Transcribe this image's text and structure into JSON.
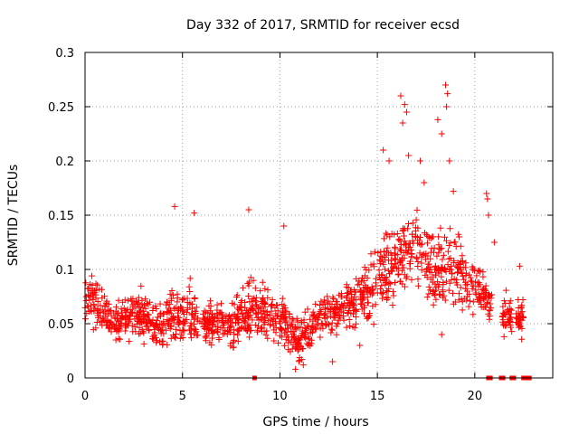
{
  "chart_data": {
    "type": "scatter",
    "title": "Day 332 of 2017, SRMTID for receiver ecsd",
    "xlabel": "GPS time / hours",
    "ylabel": "SRMTID / TECUs",
    "xlim": [
      0,
      24
    ],
    "ylim": [
      0,
      0.3
    ],
    "grid": true,
    "x_ticks": [
      0,
      5,
      10,
      15,
      20
    ],
    "x_tick_labels": [
      "0",
      "5",
      "10",
      "15",
      "20"
    ],
    "y_ticks": [
      0,
      0.05,
      0.1,
      0.15,
      0.2,
      0.25,
      0.3
    ],
    "y_tick_labels": [
      "0",
      "0.05",
      "0.1",
      "0.15",
      "0.2",
      "0.25",
      "0.3"
    ],
    "series": [
      {
        "name": "SRMTID",
        "marker": "plus",
        "color": "#ff0000",
        "profile": {
          "x": [
            0,
            0.5,
            1,
            1.5,
            2,
            2.5,
            3,
            3.5,
            4,
            4.5,
            5,
            5.5,
            6,
            6.5,
            7,
            7.5,
            8,
            8.5,
            9,
            9.5,
            10,
            10.5,
            11,
            11.5,
            12,
            12.5,
            13,
            13.5,
            14,
            14.5,
            15,
            15.5,
            16,
            16.5,
            17,
            17.5,
            18,
            18.5,
            19,
            19.5,
            20,
            20.5,
            21,
            21.5,
            22,
            22.5
          ],
          "y": [
            0.07,
            0.068,
            0.058,
            0.055,
            0.055,
            0.058,
            0.058,
            0.052,
            0.048,
            0.06,
            0.058,
            0.062,
            0.055,
            0.05,
            0.052,
            0.05,
            0.058,
            0.065,
            0.062,
            0.06,
            0.055,
            0.045,
            0.035,
            0.045,
            0.055,
            0.06,
            0.062,
            0.068,
            0.075,
            0.082,
            0.09,
            0.1,
            0.11,
            0.12,
            0.13,
            0.11,
            0.09,
            0.1,
            0.1,
            0.09,
            0.085,
            0.075,
            0.06,
            0.06,
            0.055,
            0.055
          ],
          "spread": [
            0.02,
            0.02,
            0.018,
            0.018,
            0.018,
            0.02,
            0.02,
            0.02,
            0.02,
            0.028,
            0.025,
            0.025,
            0.02,
            0.018,
            0.018,
            0.02,
            0.022,
            0.025,
            0.022,
            0.022,
            0.022,
            0.02,
            0.018,
            0.018,
            0.018,
            0.02,
            0.022,
            0.022,
            0.022,
            0.025,
            0.028,
            0.035,
            0.035,
            0.035,
            0.035,
            0.03,
            0.03,
            0.035,
            0.035,
            0.025,
            0.022,
            0.02,
            0.015,
            0.015,
            0.015,
            0.015
          ],
          "gaps": [
            [
              20.9,
              21.4
            ],
            [
              21.9,
              22.1
            ],
            [
              22.55,
              24
            ]
          ],
          "points_per_hour": 70
        },
        "outliers": [
          {
            "x": 4.6,
            "y": 0.158
          },
          {
            "x": 5.6,
            "y": 0.152
          },
          {
            "x": 8.4,
            "y": 0.155
          },
          {
            "x": 10.2,
            "y": 0.14
          },
          {
            "x": 10.8,
            "y": 0.008
          },
          {
            "x": 12.7,
            "y": 0.015
          },
          {
            "x": 15.3,
            "y": 0.21
          },
          {
            "x": 15.6,
            "y": 0.2
          },
          {
            "x": 16.2,
            "y": 0.26
          },
          {
            "x": 16.4,
            "y": 0.252
          },
          {
            "x": 16.5,
            "y": 0.245
          },
          {
            "x": 16.3,
            "y": 0.235
          },
          {
            "x": 16.6,
            "y": 0.205
          },
          {
            "x": 17.2,
            "y": 0.2
          },
          {
            "x": 17.4,
            "y": 0.18
          },
          {
            "x": 18.1,
            "y": 0.238
          },
          {
            "x": 18.5,
            "y": 0.27
          },
          {
            "x": 18.6,
            "y": 0.262
          },
          {
            "x": 18.55,
            "y": 0.25
          },
          {
            "x": 18.3,
            "y": 0.225
          },
          {
            "x": 18.7,
            "y": 0.2
          },
          {
            "x": 18.9,
            "y": 0.172
          },
          {
            "x": 19.2,
            "y": 0.13
          },
          {
            "x": 20.6,
            "y": 0.17
          },
          {
            "x": 20.65,
            "y": 0.165
          },
          {
            "x": 20.7,
            "y": 0.15
          },
          {
            "x": 21.0,
            "y": 0.125
          },
          {
            "x": 21.5,
            "y": 0.038
          },
          {
            "x": 22.3,
            "y": 0.103
          },
          {
            "x": 18.3,
            "y": 0.04
          },
          {
            "x": 11.2,
            "y": 0.012
          },
          {
            "x": 14.1,
            "y": 0.03
          }
        ],
        "zero_points": [
          8.7,
          20.7,
          20.75,
          20.8,
          21.35,
          21.4,
          21.45,
          21.9,
          21.95,
          22.0,
          22.5,
          22.55,
          22.6,
          22.65,
          22.7,
          22.75,
          22.8
        ]
      }
    ]
  }
}
